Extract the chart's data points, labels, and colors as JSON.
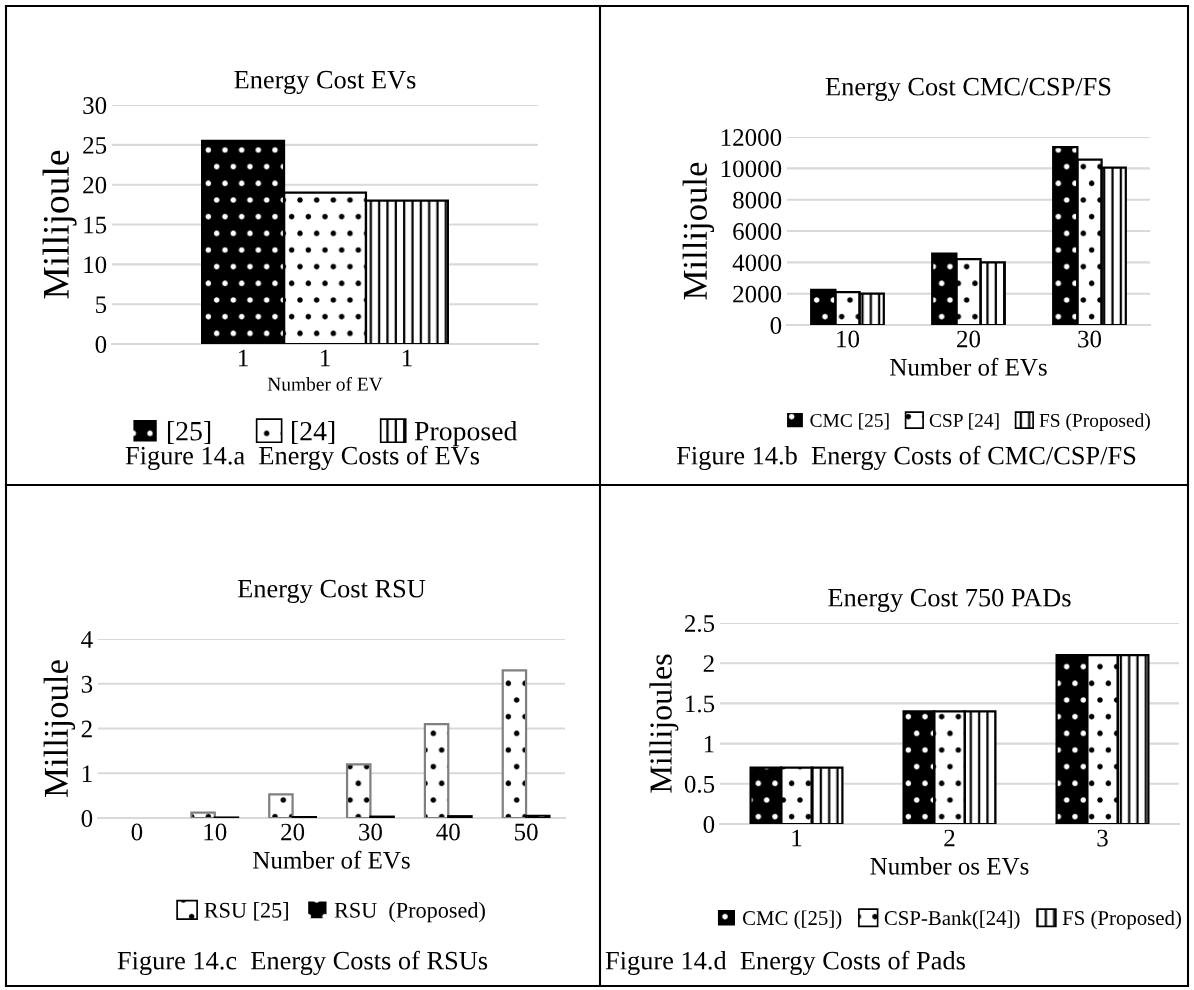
{
  "chart_data": [
    {
      "type": "bar",
      "title": "Energy Cost EVs",
      "xlabel": "Number of EV",
      "ylabel": "Millijoule",
      "categories": [
        "1",
        "1",
        "1"
      ],
      "series": [
        {
          "name": "[25]",
          "color": "#000000",
          "values": [
            25.5,
            null,
            null
          ]
        },
        {
          "name": "[24]",
          "color": "#ffffff",
          "values": [
            null,
            19,
            null
          ]
        },
        {
          "name": "Proposed",
          "color": "#ffffff",
          "values": [
            null,
            null,
            18
          ]
        }
      ],
      "ylim": [
        0,
        30
      ],
      "yticks": [
        0,
        5,
        10,
        15,
        20,
        25,
        30
      ],
      "grid": "y",
      "legend": "bottom",
      "annotations": [
        "Figure 14.a  Energy Costs of EVs"
      ]
    },
    {
      "type": "bar",
      "title": "Energy Cost CMC/CSP/FS",
      "xlabel": "Number of EVs",
      "ylabel": "Millijoule",
      "categories": [
        "10",
        "20",
        "30"
      ],
      "series": [
        {
          "name": "CMC [25]",
          "color": "#000000",
          "values": [
            2250,
            4550,
            11350
          ]
        },
        {
          "name": "CSP [24]",
          "color": "#ffffff",
          "values": [
            2100,
            4200,
            10550
          ]
        },
        {
          "name": "FS (Proposed)",
          "color": "#ffffff",
          "values": [
            2000,
            4000,
            10050
          ]
        }
      ],
      "ylim": [
        0,
        12000
      ],
      "yticks": [
        0,
        2000,
        4000,
        6000,
        8000,
        10000,
        12000
      ],
      "grid": "y",
      "legend": "bottom",
      "annotations": [
        "Figure 14.b  Energy Costs of CMC/CSP/FS"
      ]
    },
    {
      "type": "bar",
      "title": "Energy Cost RSU",
      "xlabel": "Number of EVs",
      "ylabel": "Millijoule",
      "categories": [
        "0",
        "10",
        "20",
        "30",
        "40",
        "50"
      ],
      "series": [
        {
          "name": "RSU [25]",
          "color": "#ffffff",
          "values": [
            null,
            0.12,
            0.53,
            1.2,
            2.1,
            3.3
          ]
        },
        {
          "name": "RSU  (Proposed)",
          "color": "#000000",
          "values": [
            null,
            0.01,
            0.02,
            0.03,
            0.04,
            0.05
          ]
        }
      ],
      "ylim": [
        0,
        4
      ],
      "yticks": [
        0,
        1,
        2,
        3,
        4
      ],
      "grid": "y",
      "legend": "bottom",
      "annotations": [
        "Figure 14.c  Energy Costs of RSUs"
      ]
    },
    {
      "type": "bar",
      "title": "Energy Cost 750 PADs",
      "xlabel": "Number os EVs",
      "ylabel": "Millijoules",
      "categories": [
        "1",
        "2",
        "3"
      ],
      "series": [
        {
          "name": "CMC ([25])",
          "color": "#000000",
          "values": [
            0.7,
            1.4,
            2.1
          ]
        },
        {
          "name": "CSP-Bank([24])",
          "color": "#ffffff",
          "values": [
            0.7,
            1.4,
            2.1
          ]
        },
        {
          "name": "FS (Proposed)",
          "color": "#ffffff",
          "values": [
            0.7,
            1.4,
            2.1
          ]
        }
      ],
      "ylim": [
        0,
        2.5
      ],
      "yticks": [
        0,
        0.5,
        1,
        1.5,
        2,
        2.5
      ],
      "grid": "y",
      "legend": "bottom",
      "annotations": [
        "Figure 14.d  Energy Costs of Pads"
      ]
    }
  ]
}
